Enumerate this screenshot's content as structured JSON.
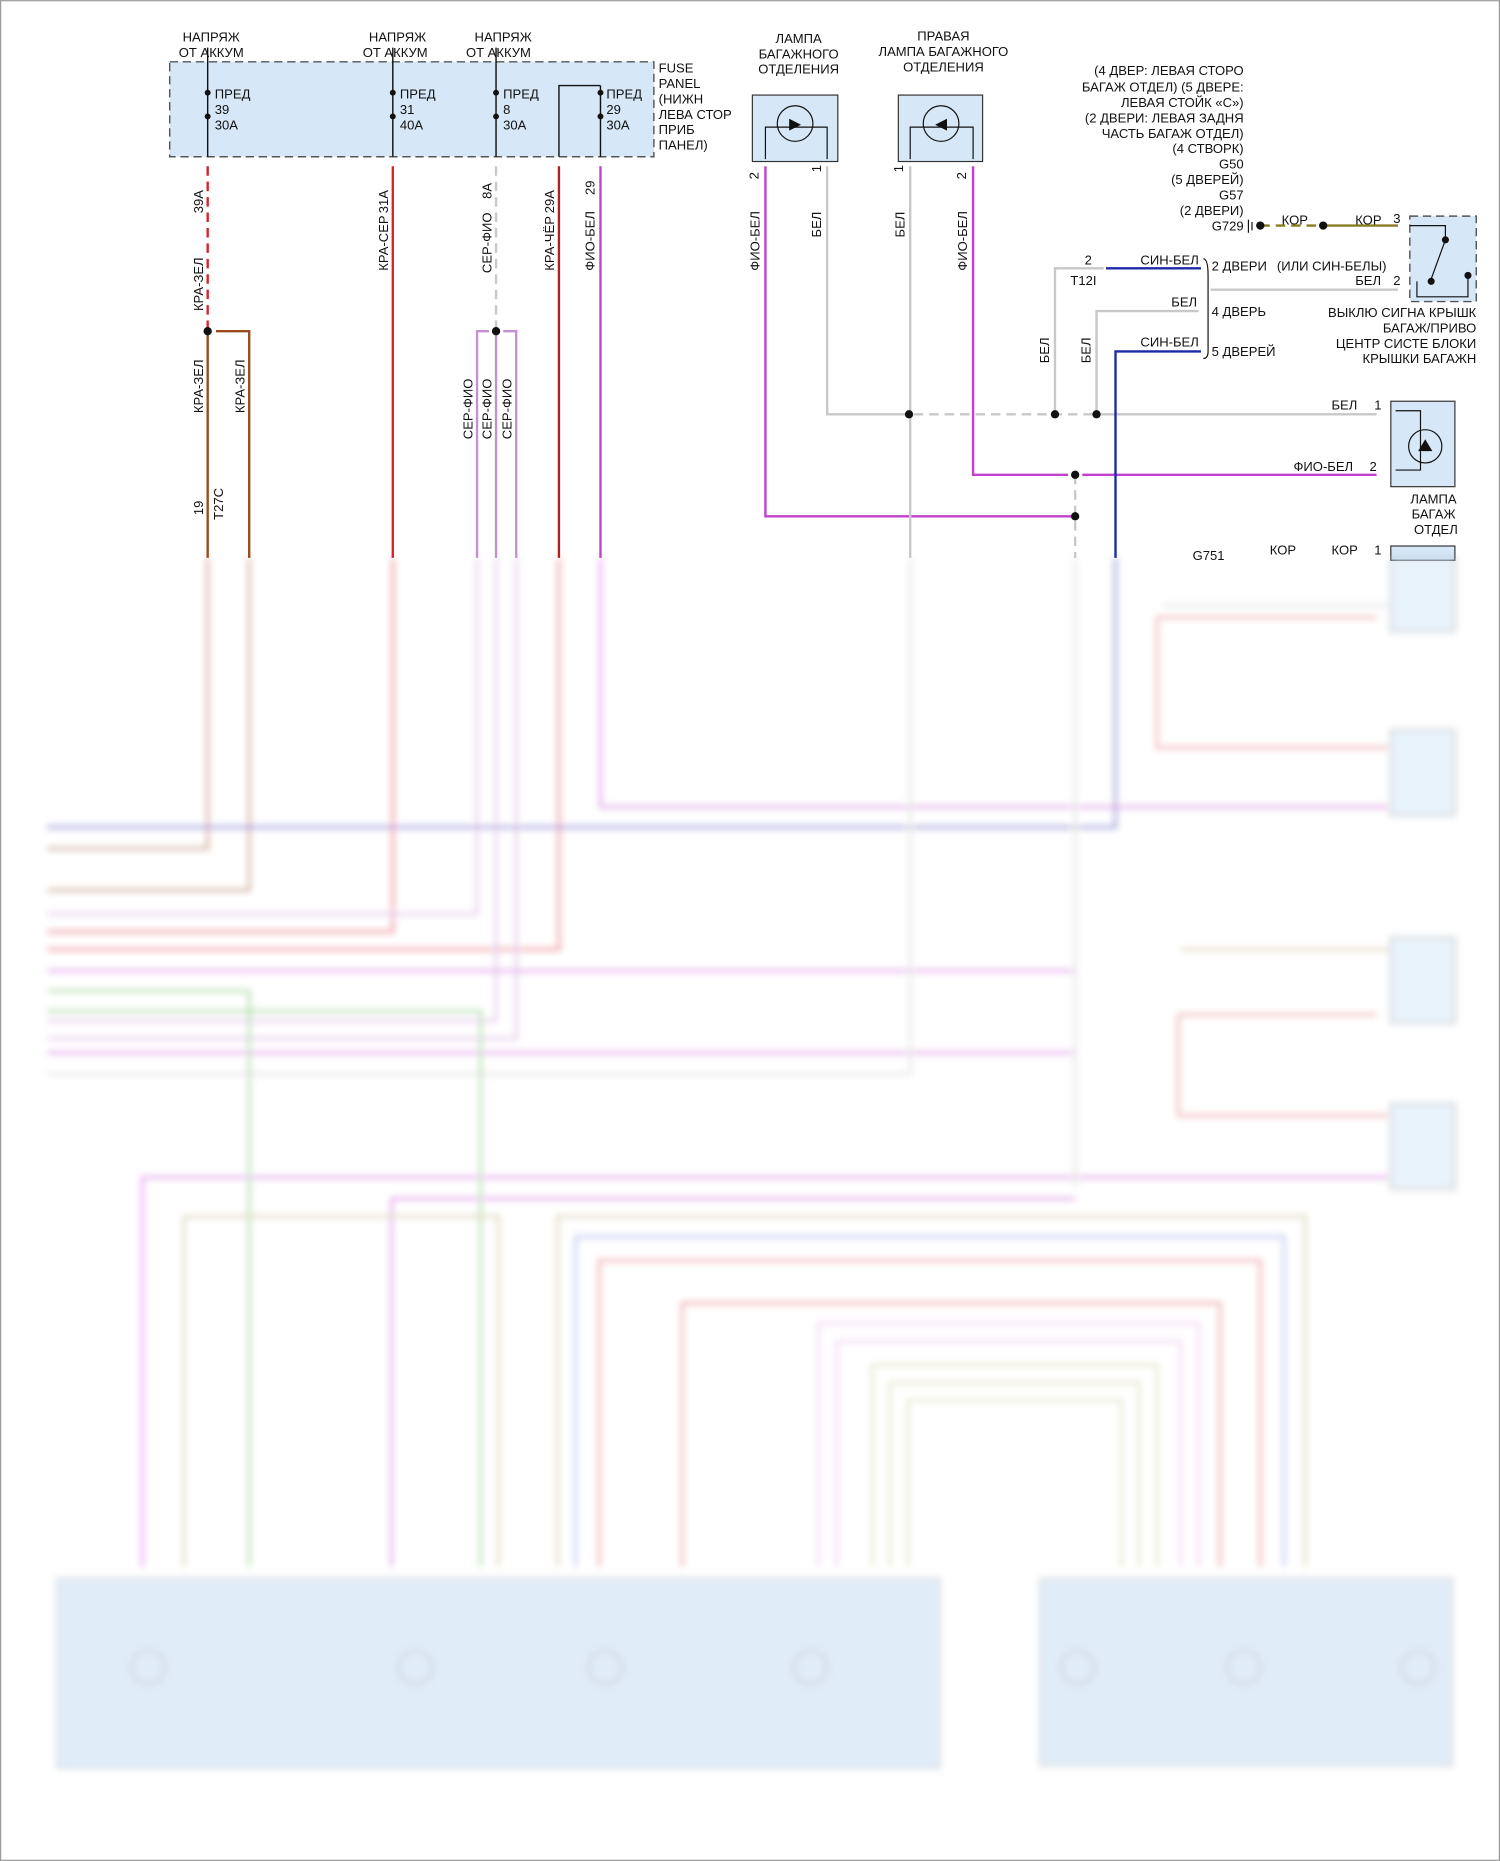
{
  "colors": {
    "red": "#d9222a",
    "brown": "#9a4a1c",
    "gray": "#c8c8c8",
    "violet": "#c58fd0",
    "magenta": "#c23fd0",
    "blue": "#1c2aa8",
    "olive": "#8a7a20",
    "panel": "#d6e8f8"
  },
  "supply": [
    {
      "line1": "НАПРЯЖ",
      "line2": "ОТ АККУМ"
    },
    {
      "line1": "НАПРЯЖ",
      "line2": "ОТ АККУМ"
    },
    {
      "line1": "НАПРЯЖ",
      "line2": "ОТ АККУМ"
    }
  ],
  "fuses": [
    {
      "name": "ПРЕД",
      "num": "39",
      "amp": "30A",
      "pin": "39A",
      "wire": "КРА-ЗЕЛ"
    },
    {
      "name": "ПРЕД",
      "num": "31",
      "amp": "40A",
      "pin": "31A",
      "wire": "КРА-СЕР"
    },
    {
      "name": "ПРЕД",
      "num": "8",
      "amp": "30A",
      "pin": "8A",
      "wire": "СЕР-ФИО"
    },
    {
      "name": "ПРЕД",
      "num": "29",
      "amp": "30A",
      "pin": "29",
      "wire": "ФИО-БЕЛ"
    }
  ],
  "loop_pin": "29A",
  "loop_wire": "КРА-ЧЁР",
  "fuse_panel": [
    "FUSE",
    "PANEL",
    "(НИЖН",
    "ЛЕВА СТОР",
    "ПРИБ",
    "ПАНЕЛ)"
  ],
  "branch": {
    "w1": "КРА-ЗЕЛ",
    "w2": "КРА-ЗЕЛ",
    "pin": "19",
    "conn": "T27C",
    "v1": "СЕР-ФИО",
    "v2": "СЕР-ФИО",
    "v3": "СЕР-ФИО"
  },
  "lamp_left": {
    "title": [
      "ЛАМПА",
      "БАГАЖНОГО",
      "ОТДЕЛЕНИЯ"
    ],
    "pin_a": "2",
    "pin_b": "1",
    "wire_a": "ФИО-БЕЛ",
    "wire_b": "БЕЛ"
  },
  "lamp_right": {
    "title": [
      "ПРАВАЯ",
      "ЛАМПА БАГАЖНОГО",
      "ОТДЕЛЕНИЯ"
    ],
    "pin_a": "1",
    "pin_b": "2",
    "wire_a": "БЕЛ",
    "wire_b": "ФИО-БЕЛ"
  },
  "ground_note": [
    "(4 ДВЕР: ЛЕВАЯ СТОРО",
    "БАГАЖ ОТДЕЛ) (5 ДВЕРЕ:",
    "ЛЕВАЯ СТОЙК «С»)",
    "(2 ДВЕРИ: ЛЕВАЯ ЗАДНЯ",
    "ЧАСТЬ БАГАЖ ОТДЕЛ)",
    "(4 СТВОРК)",
    "G50",
    "(5 ДВЕРЕЙ)",
    "G57",
    "(2 ДВЕРИ)",
    "G729"
  ],
  "switch": {
    "kor1": "КОР",
    "kor2": "КОР",
    "pin3": "3",
    "pin2": "2",
    "bel": "БЕЛ",
    "alt": "(ИЛИ СИН-БЕЛЫ)",
    "label": [
      "ВЫКЛЮ СИГНА КРЫШК",
      "БАГАЖ/ПРИВО",
      "ЦЕНТР СИСТЕ БЛОКИ",
      "КРЫШКИ БАГАЖН"
    ]
  },
  "variants": {
    "pin": "2",
    "conn": "T12I",
    "sb1": "СИН-БЕЛ",
    "d2": "2 ДВЕРИ",
    "bel": "БЕЛ",
    "d4": "4 ДВЕРЬ",
    "sb2": "СИН-БЕЛ",
    "d5": "5 ДВЕРЕЙ",
    "v_bel1": "БЕЛ",
    "v_bel2": "БЕЛ"
  },
  "lamp3": {
    "pin1": "1",
    "pin2": "2",
    "wire1": "БЕЛ",
    "wire2": "ФИО-БЕЛ",
    "label": [
      "ЛАМПА",
      "БАГАЖ",
      "ОТДЕЛ"
    ]
  },
  "lamp4": {
    "ground": "G751",
    "kor1": "КОР",
    "kor2": "КОР",
    "pin": "1"
  }
}
